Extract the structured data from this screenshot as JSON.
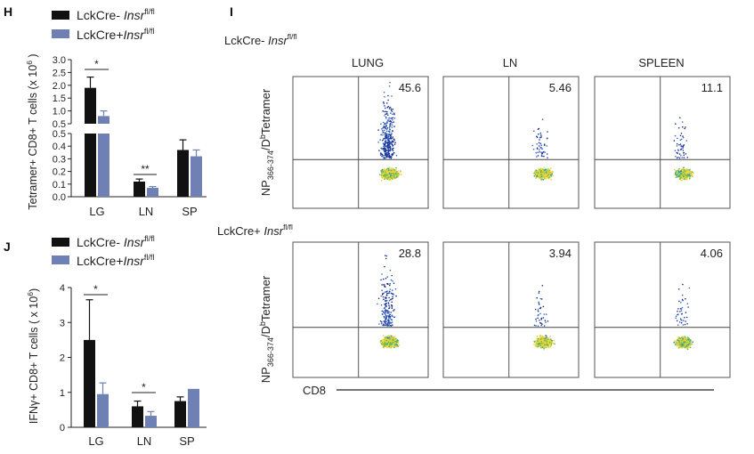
{
  "colors": {
    "ko_black": "#111111",
    "cre_blue": "#6f80b4"
  },
  "legend": {
    "h": {
      "item1": {
        "prefix": "LckCre- ",
        "gene": "Insr",
        "sup": "fl/fl"
      },
      "item2": {
        "prefix": "LckCre+",
        "gene": "Insr",
        "sup": "fl/fl"
      }
    },
    "j": {
      "item1": {
        "prefix": "LckCre- ",
        "gene": "Insr",
        "sup": "fl/fl"
      },
      "item2": {
        "prefix": "LckCre+",
        "gene": "Insr",
        "sup": "fl/fl"
      }
    }
  },
  "chart_data": [
    {
      "panel": "H",
      "type": "bar",
      "ylabel": {
        "text": "Tetramer+ CD8+ T cells (x 10",
        "sup": "6",
        "tail": " )"
      },
      "categories": [
        "LG",
        "LN",
        "SP"
      ],
      "axis_break": {
        "lower_ylim": [
          0,
          0.5
        ],
        "upper_ylim": [
          0.5,
          3.0
        ]
      },
      "lower_ticks": [
        "0.0",
        "0.1",
        "0.2",
        "0.3",
        "0.4",
        "0.5"
      ],
      "upper_ticks": [
        "0.5",
        "1.0",
        "1.5",
        "2.0",
        "2.5",
        "3.0"
      ],
      "series": [
        {
          "name": "LckCre- Insrfl/fl",
          "values": [
            1.9,
            0.12,
            0.37
          ],
          "errors": [
            0.42,
            0.02,
            0.08
          ]
        },
        {
          "name": "LckCre+Insrfl/fl",
          "values": [
            0.8,
            0.07,
            0.32
          ],
          "errors": [
            0.2,
            0.01,
            0.05
          ]
        }
      ],
      "significance": [
        {
          "category": "LG",
          "label": "*"
        },
        {
          "category": "LN",
          "label": "**"
        }
      ]
    },
    {
      "panel": "J",
      "type": "bar",
      "ylabel": {
        "text": "IFNγ+ CD8+ T cells ( x 10",
        "sup": "6",
        "tail": ")"
      },
      "categories": [
        "LG",
        "LN",
        "SP"
      ],
      "ylim": [
        0,
        4
      ],
      "ticks": [
        "0",
        "1",
        "2",
        "3",
        "4"
      ],
      "series": [
        {
          "name": "LckCre- Insrfl/fl",
          "values": [
            2.5,
            0.6,
            0.75
          ],
          "errors": [
            1.15,
            0.15,
            0.12
          ]
        },
        {
          "name": "LckCre+Insrfl/fl",
          "values": [
            0.95,
            0.33,
            1.1
          ],
          "errors": [
            0.32,
            0.12,
            0.0
          ]
        }
      ],
      "significance": [
        {
          "category": "LG",
          "label": "*"
        },
        {
          "category": "LN",
          "label": "*"
        }
      ]
    }
  ],
  "flow": {
    "panel": "I",
    "columns": [
      "LUNG",
      "LN",
      "SPLEEN"
    ],
    "rows": [
      {
        "label": {
          "prefix": "LckCre- ",
          "gene": "Insr",
          "sup": "fl/fl"
        },
        "values": [
          "45.6",
          "5.46",
          "11.1"
        ]
      },
      {
        "label": {
          "prefix": "LckCre+ ",
          "gene": "Insr",
          "sup": "fl/fl"
        },
        "values": [
          "28.8",
          "3.94",
          "4.06"
        ]
      }
    ],
    "ylabel": {
      "np": "NP",
      "np_sub": "366-374",
      "slash": "/D",
      "sup": "b",
      "tail": "Tetramer"
    },
    "xlabel": "CD8"
  }
}
